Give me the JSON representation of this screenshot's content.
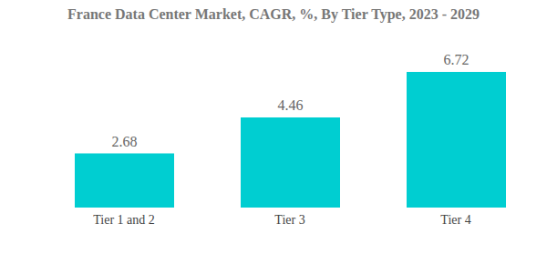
{
  "chart_data": {
    "type": "bar",
    "title": "France Data Center Market, CAGR, %, By Tier Type, 2023 - 2029",
    "categories": [
      "Tier 1 and 2",
      "Tier 3",
      "Tier 4"
    ],
    "values": [
      2.68,
      4.46,
      6.72
    ],
    "color": "#00ced1",
    "data_labels": true,
    "tick_labels": "x",
    "grid": false
  }
}
